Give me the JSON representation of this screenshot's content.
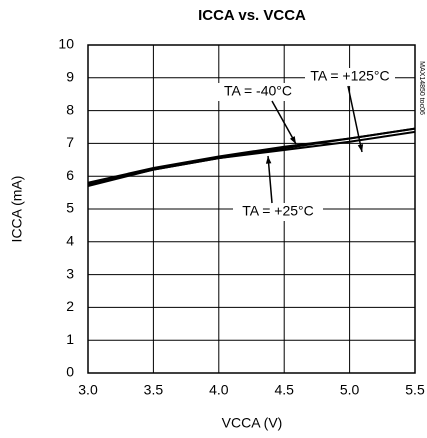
{
  "chart_data": {
    "type": "line",
    "title": "ICCA vs. VCCA",
    "x_label": "VCCA (V)",
    "y_label": "ICCA (mA)",
    "x": [
      3.0,
      3.5,
      4.0,
      4.5,
      5.0,
      5.5
    ],
    "series": [
      {
        "name": "TA = -40°C",
        "color": "#000000",
        "values": [
          5.8,
          6.25,
          6.6,
          6.9,
          7.15,
          7.45
        ]
      },
      {
        "name": "TA = +125°C",
        "color": "#000000",
        "values": [
          5.7,
          6.2,
          6.55,
          6.85,
          7.15,
          7.45
        ]
      },
      {
        "name": "TA = +25°C",
        "color": "#000000",
        "values": [
          5.75,
          6.2,
          6.55,
          6.8,
          7.05,
          7.35
        ]
      }
    ],
    "side_note": "MAX14850 toc06",
    "xlim": [
      3.0,
      5.5
    ],
    "xticks": [
      {
        "value": 3,
        "label": "3.0"
      },
      3.5,
      {
        "value": 4,
        "label": "4.0"
      },
      4.5,
      {
        "value": 5,
        "label": "5.0"
      },
      5.5
    ],
    "ylim": [
      0,
      10
    ],
    "yticks": [
      0,
      1,
      2,
      3,
      4,
      5,
      6,
      7,
      8,
      9,
      10
    ],
    "grid": true
  }
}
